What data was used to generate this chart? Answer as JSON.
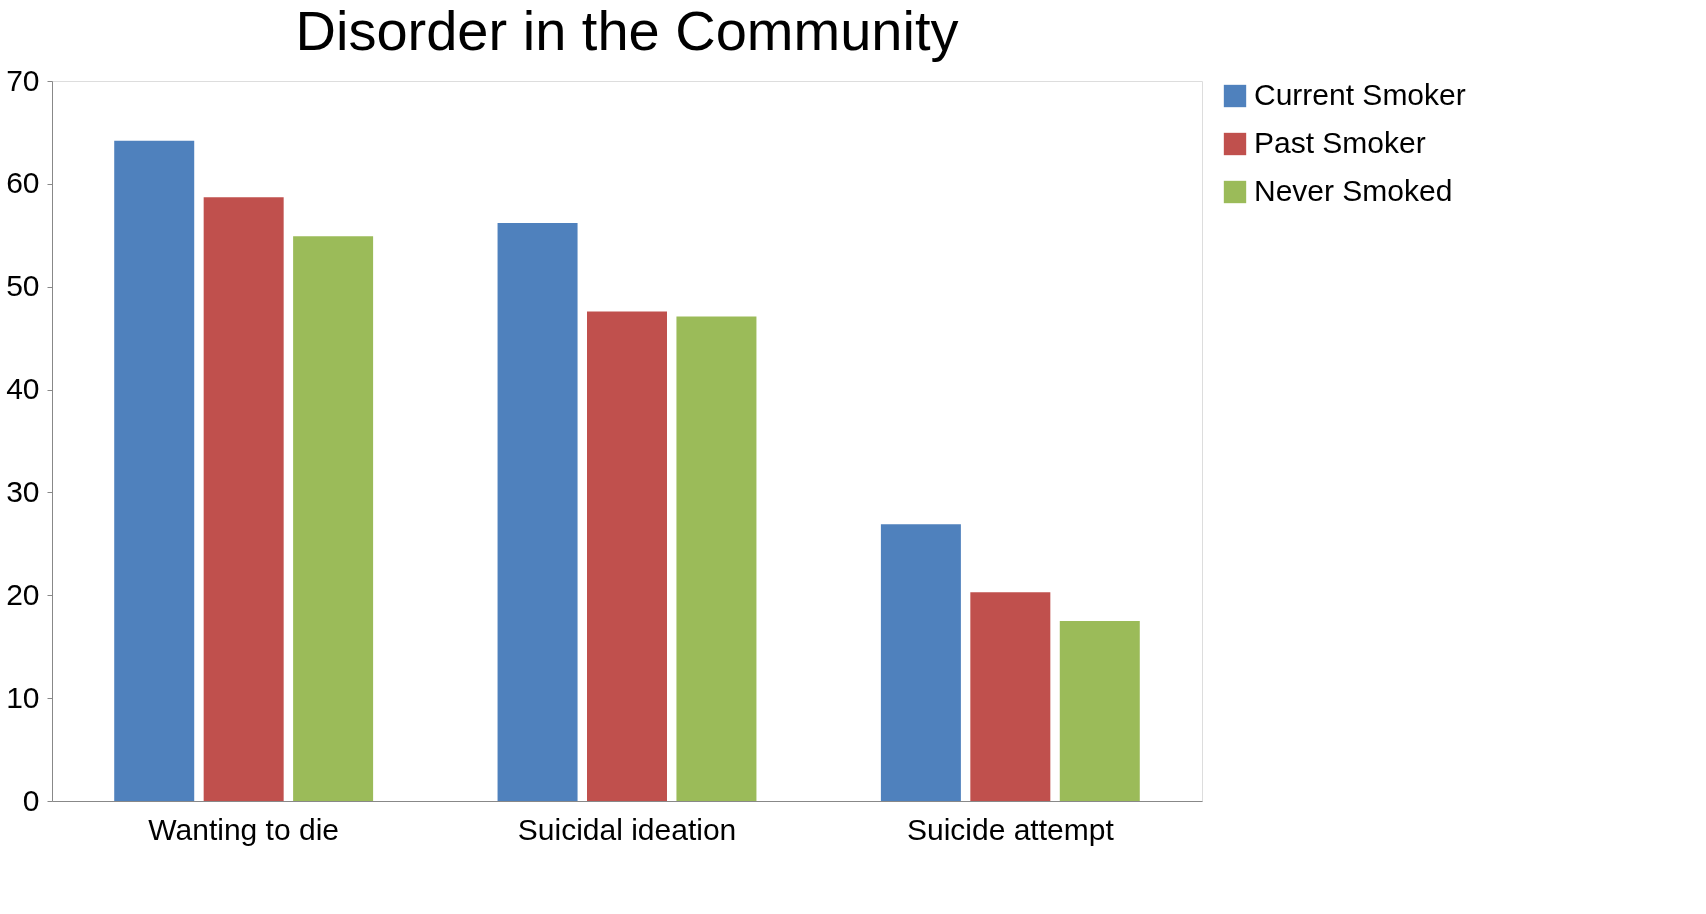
{
  "chart_data": {
    "type": "bar",
    "title": "Disorder in the Community",
    "categories": [
      "Wanting to die",
      "Suicidal ideation",
      "Suicide attempt"
    ],
    "series": [
      {
        "name": "Current Smoker",
        "color": "#4f81bd",
        "values": [
          64.2,
          56.2,
          26.9
        ]
      },
      {
        "name": "Past Smoker",
        "color": "#c0504d",
        "values": [
          58.7,
          47.6,
          20.3
        ]
      },
      {
        "name": "Never Smoked",
        "color": "#9bbb59",
        "values": [
          54.9,
          47.1,
          17.5
        ]
      }
    ],
    "ylim": [
      0,
      70
    ],
    "yticks": [
      0,
      10,
      20,
      30,
      40,
      50,
      60,
      70
    ],
    "grid": false,
    "legend": "right"
  }
}
